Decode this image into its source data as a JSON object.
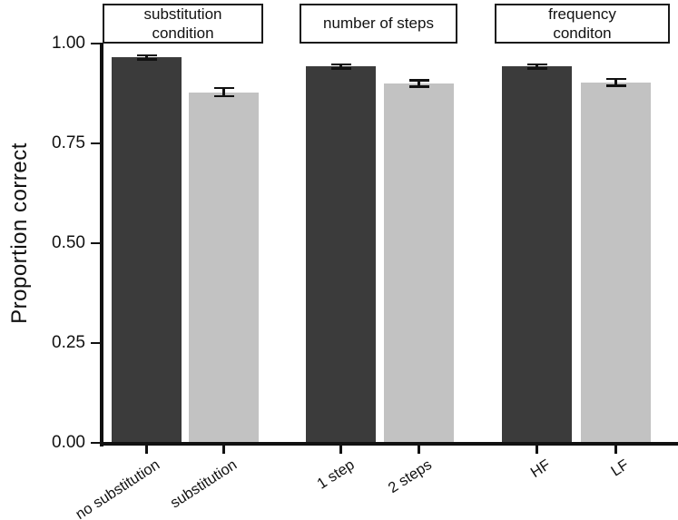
{
  "chart_data": {
    "type": "bar",
    "title": "",
    "xlabel": "",
    "ylabel": "Proportion correct",
    "ylim": [
      0,
      1.0
    ],
    "grid": false,
    "legend": "none",
    "ytick_labels": [
      "0.00",
      "0.25",
      "0.50",
      "0.75",
      "1.00"
    ],
    "ytick_values": [
      0,
      0.25,
      0.5,
      0.75,
      1.0
    ],
    "categories": [
      "no substitution",
      "substitution",
      "1 step",
      "2 steps",
      "HF",
      "LF"
    ],
    "values": [
      0.965,
      0.878,
      0.943,
      0.9,
      0.943,
      0.903
    ],
    "errors": [
      0.008,
      0.013,
      0.008,
      0.011,
      0.008,
      0.011
    ],
    "bar_color_roles": [
      "dark",
      "light",
      "dark",
      "light",
      "dark",
      "light"
    ],
    "colors": {
      "dark": "#3b3b3b",
      "light": "#c2c2c2",
      "axis": "#111111"
    },
    "groups": [
      {
        "header": "substitution\ncondition",
        "categories": [
          "no substitution",
          "substitution"
        ]
      },
      {
        "header": "number of steps",
        "categories": [
          "1 step",
          "2 steps"
        ]
      },
      {
        "header": "frequency\nconditon",
        "categories": [
          "HF",
          "LF"
        ]
      }
    ]
  }
}
